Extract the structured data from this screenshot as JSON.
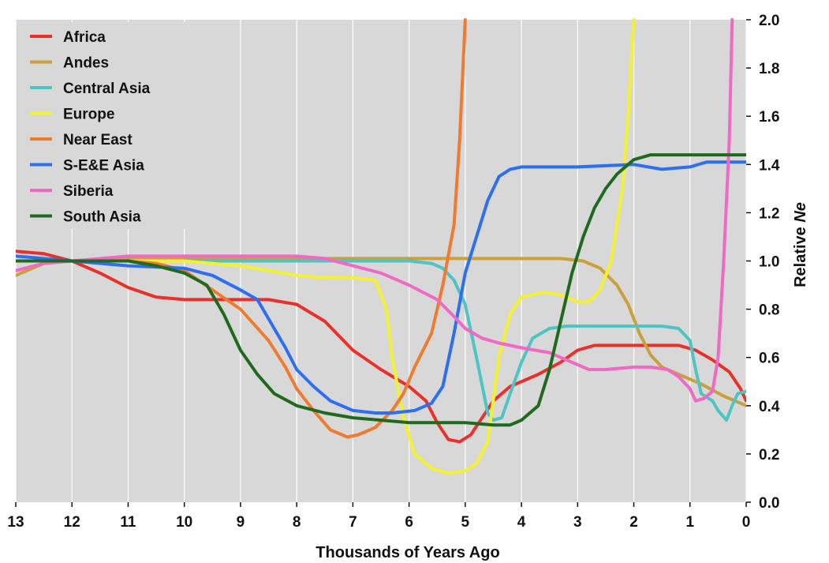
{
  "chart_data": {
    "type": "line",
    "xlabel": "Thousands of Years Ago",
    "ylabel_prefix": "Relative ",
    "ylabel_italic": "Ne",
    "xlim": [
      13,
      0
    ],
    "ylim": [
      0,
      2.0
    ],
    "x_ticks": [
      "13",
      "12",
      "11",
      "10",
      "9",
      "8",
      "7",
      "6",
      "5",
      "4",
      "3",
      "2",
      "1",
      "0"
    ],
    "y_ticks": [
      "0.0",
      "0.2",
      "0.4",
      "0.6",
      "0.8",
      "1.0",
      "1.2",
      "1.4",
      "1.6",
      "1.8",
      "2.0"
    ],
    "background": "#d8d8d8",
    "grid": "vertical",
    "legend_position": "top-left",
    "series": [
      {
        "name": "Africa",
        "color": "#e8312a",
        "points": [
          [
            13,
            1.04
          ],
          [
            12.5,
            1.03
          ],
          [
            12,
            1.0
          ],
          [
            11.5,
            0.95
          ],
          [
            11,
            0.89
          ],
          [
            10.5,
            0.85
          ],
          [
            10,
            0.84
          ],
          [
            9,
            0.84
          ],
          [
            8.5,
            0.84
          ],
          [
            8,
            0.82
          ],
          [
            7.5,
            0.75
          ],
          [
            7,
            0.63
          ],
          [
            6.5,
            0.55
          ],
          [
            6,
            0.48
          ],
          [
            5.7,
            0.42
          ],
          [
            5.5,
            0.33
          ],
          [
            5.3,
            0.26
          ],
          [
            5.1,
            0.25
          ],
          [
            4.9,
            0.28
          ],
          [
            4.7,
            0.35
          ],
          [
            4.5,
            0.42
          ],
          [
            4.2,
            0.48
          ],
          [
            3.7,
            0.53
          ],
          [
            3.3,
            0.58
          ],
          [
            3,
            0.63
          ],
          [
            2.7,
            0.65
          ],
          [
            2.3,
            0.65
          ],
          [
            1.8,
            0.65
          ],
          [
            1.2,
            0.65
          ],
          [
            0.9,
            0.63
          ],
          [
            0.6,
            0.59
          ],
          [
            0.3,
            0.54
          ],
          [
            0.1,
            0.47
          ],
          [
            0,
            0.42
          ]
        ]
      },
      {
        "name": "Andes",
        "color": "#c9a03a",
        "points": [
          [
            13,
            0.94
          ],
          [
            12.5,
            0.99
          ],
          [
            12,
            1.0
          ],
          [
            11,
            1.01
          ],
          [
            10,
            1.01
          ],
          [
            9,
            1.01
          ],
          [
            8,
            1.01
          ],
          [
            7,
            1.01
          ],
          [
            6,
            1.01
          ],
          [
            5,
            1.01
          ],
          [
            4,
            1.01
          ],
          [
            3.3,
            1.01
          ],
          [
            2.9,
            1.0
          ],
          [
            2.6,
            0.97
          ],
          [
            2.3,
            0.9
          ],
          [
            2.1,
            0.82
          ],
          [
            1.9,
            0.7
          ],
          [
            1.7,
            0.61
          ],
          [
            1.5,
            0.56
          ],
          [
            1.2,
            0.53
          ],
          [
            0.8,
            0.49
          ],
          [
            0.4,
            0.44
          ],
          [
            0,
            0.4
          ]
        ]
      },
      {
        "name": "Central Asia",
        "color": "#4ec4c4",
        "points": [
          [
            13,
            1.0
          ],
          [
            12,
            1.0
          ],
          [
            11,
            1.0
          ],
          [
            10,
            1.0
          ],
          [
            9,
            1.0
          ],
          [
            8,
            1.0
          ],
          [
            7,
            1.0
          ],
          [
            6,
            1.0
          ],
          [
            5.6,
            0.99
          ],
          [
            5.4,
            0.97
          ],
          [
            5.2,
            0.92
          ],
          [
            5,
            0.82
          ],
          [
            4.8,
            0.6
          ],
          [
            4.6,
            0.37
          ],
          [
            4.5,
            0.34
          ],
          [
            4.35,
            0.35
          ],
          [
            4.2,
            0.45
          ],
          [
            4.0,
            0.58
          ],
          [
            3.8,
            0.68
          ],
          [
            3.5,
            0.72
          ],
          [
            3.2,
            0.73
          ],
          [
            2.5,
            0.73
          ],
          [
            1.5,
            0.73
          ],
          [
            1.2,
            0.72
          ],
          [
            1.0,
            0.67
          ],
          [
            0.9,
            0.55
          ],
          [
            0.8,
            0.45
          ],
          [
            0.6,
            0.42
          ],
          [
            0.5,
            0.38
          ],
          [
            0.35,
            0.34
          ],
          [
            0.25,
            0.4
          ],
          [
            0.15,
            0.45
          ],
          [
            0,
            0.46
          ]
        ]
      },
      {
        "name": "Europe",
        "color": "#f4f032",
        "points": [
          [
            13,
            1.0
          ],
          [
            12,
            1.0
          ],
          [
            11,
            1.0
          ],
          [
            10,
            1.0
          ],
          [
            9.5,
            0.99
          ],
          [
            9,
            0.98
          ],
          [
            8.5,
            0.96
          ],
          [
            8,
            0.94
          ],
          [
            7.5,
            0.93
          ],
          [
            7,
            0.93
          ],
          [
            6.6,
            0.92
          ],
          [
            6.4,
            0.8
          ],
          [
            6.3,
            0.6
          ],
          [
            6.1,
            0.35
          ],
          [
            5.9,
            0.2
          ],
          [
            5.6,
            0.14
          ],
          [
            5.3,
            0.12
          ],
          [
            5.0,
            0.13
          ],
          [
            4.8,
            0.16
          ],
          [
            4.6,
            0.25
          ],
          [
            4.4,
            0.6
          ],
          [
            4.2,
            0.78
          ],
          [
            4.0,
            0.85
          ],
          [
            3.6,
            0.87
          ],
          [
            3.3,
            0.86
          ],
          [
            3.0,
            0.83
          ],
          [
            2.8,
            0.83
          ],
          [
            2.6,
            0.88
          ],
          [
            2.4,
            1.0
          ],
          [
            2.2,
            1.3
          ],
          [
            2.1,
            1.6
          ],
          [
            2.0,
            2.0
          ]
        ]
      },
      {
        "name": "Near East",
        "color": "#f07a30",
        "points": [
          [
            13,
            1.0
          ],
          [
            12,
            1.0
          ],
          [
            11,
            1.0
          ],
          [
            10.5,
            0.99
          ],
          [
            10,
            0.96
          ],
          [
            9.5,
            0.88
          ],
          [
            9,
            0.8
          ],
          [
            8.5,
            0.67
          ],
          [
            8.2,
            0.56
          ],
          [
            8,
            0.47
          ],
          [
            7.7,
            0.38
          ],
          [
            7.4,
            0.3
          ],
          [
            7.1,
            0.27
          ],
          [
            6.9,
            0.28
          ],
          [
            6.6,
            0.31
          ],
          [
            6.3,
            0.38
          ],
          [
            6.1,
            0.45
          ],
          [
            5.9,
            0.56
          ],
          [
            5.6,
            0.7
          ],
          [
            5.4,
            0.9
          ],
          [
            5.2,
            1.15
          ],
          [
            5.1,
            1.5
          ],
          [
            5.0,
            2.0
          ]
        ]
      },
      {
        "name": "S-E&E Asia",
        "color": "#2e6ef0",
        "points": [
          [
            13,
            1.02
          ],
          [
            12.5,
            1.01
          ],
          [
            12,
            1.0
          ],
          [
            11,
            0.98
          ],
          [
            10,
            0.97
          ],
          [
            9.5,
            0.94
          ],
          [
            9,
            0.88
          ],
          [
            8.7,
            0.84
          ],
          [
            8.5,
            0.76
          ],
          [
            8.2,
            0.64
          ],
          [
            8,
            0.55
          ],
          [
            7.7,
            0.48
          ],
          [
            7.4,
            0.42
          ],
          [
            7,
            0.38
          ],
          [
            6.6,
            0.37
          ],
          [
            6.3,
            0.37
          ],
          [
            5.9,
            0.38
          ],
          [
            5.6,
            0.41
          ],
          [
            5.4,
            0.48
          ],
          [
            5.2,
            0.7
          ],
          [
            5.0,
            0.95
          ],
          [
            4.8,
            1.1
          ],
          [
            4.6,
            1.25
          ],
          [
            4.4,
            1.35
          ],
          [
            4.2,
            1.38
          ],
          [
            4.0,
            1.39
          ],
          [
            3.5,
            1.39
          ],
          [
            3,
            1.39
          ],
          [
            2,
            1.4
          ],
          [
            1.5,
            1.38
          ],
          [
            1.0,
            1.39
          ],
          [
            0.7,
            1.41
          ],
          [
            0.3,
            1.41
          ],
          [
            0,
            1.41
          ]
        ]
      },
      {
        "name": "Siberia",
        "color": "#f069c4",
        "points": [
          [
            13,
            0.96
          ],
          [
            12.5,
            0.99
          ],
          [
            12,
            1.0
          ],
          [
            11,
            1.02
          ],
          [
            10,
            1.02
          ],
          [
            9,
            1.02
          ],
          [
            8,
            1.02
          ],
          [
            7.5,
            1.01
          ],
          [
            7,
            0.98
          ],
          [
            6.5,
            0.95
          ],
          [
            6,
            0.9
          ],
          [
            5.5,
            0.84
          ],
          [
            5.2,
            0.77
          ],
          [
            5.0,
            0.72
          ],
          [
            4.7,
            0.68
          ],
          [
            4.4,
            0.66
          ],
          [
            4,
            0.64
          ],
          [
            3.5,
            0.62
          ],
          [
            3.2,
            0.59
          ],
          [
            3.0,
            0.57
          ],
          [
            2.8,
            0.55
          ],
          [
            2.5,
            0.55
          ],
          [
            2,
            0.56
          ],
          [
            1.7,
            0.56
          ],
          [
            1.4,
            0.55
          ],
          [
            1.2,
            0.52
          ],
          [
            1.0,
            0.47
          ],
          [
            0.9,
            0.42
          ],
          [
            0.75,
            0.43
          ],
          [
            0.6,
            0.46
          ],
          [
            0.5,
            0.6
          ],
          [
            0.4,
            1.0
          ],
          [
            0.3,
            1.5
          ],
          [
            0.25,
            2.0
          ]
        ]
      },
      {
        "name": "South Asia",
        "color": "#1f6a1f",
        "points": [
          [
            13,
            1.0
          ],
          [
            12.5,
            1.0
          ],
          [
            12,
            1.0
          ],
          [
            11.5,
            1.0
          ],
          [
            11,
            1.0
          ],
          [
            10.5,
            0.98
          ],
          [
            10,
            0.95
          ],
          [
            9.6,
            0.9
          ],
          [
            9.3,
            0.78
          ],
          [
            9,
            0.63
          ],
          [
            8.7,
            0.53
          ],
          [
            8.4,
            0.45
          ],
          [
            8,
            0.4
          ],
          [
            7.5,
            0.37
          ],
          [
            7,
            0.35
          ],
          [
            6.5,
            0.34
          ],
          [
            6,
            0.33
          ],
          [
            5,
            0.33
          ],
          [
            4.5,
            0.32
          ],
          [
            4.2,
            0.32
          ],
          [
            4.0,
            0.34
          ],
          [
            3.7,
            0.4
          ],
          [
            3.5,
            0.55
          ],
          [
            3.3,
            0.75
          ],
          [
            3.1,
            0.95
          ],
          [
            2.9,
            1.1
          ],
          [
            2.7,
            1.22
          ],
          [
            2.5,
            1.3
          ],
          [
            2.3,
            1.36
          ],
          [
            2.0,
            1.42
          ],
          [
            1.7,
            1.44
          ],
          [
            1.2,
            1.44
          ],
          [
            0.5,
            1.44
          ],
          [
            0,
            1.44
          ]
        ]
      }
    ]
  }
}
